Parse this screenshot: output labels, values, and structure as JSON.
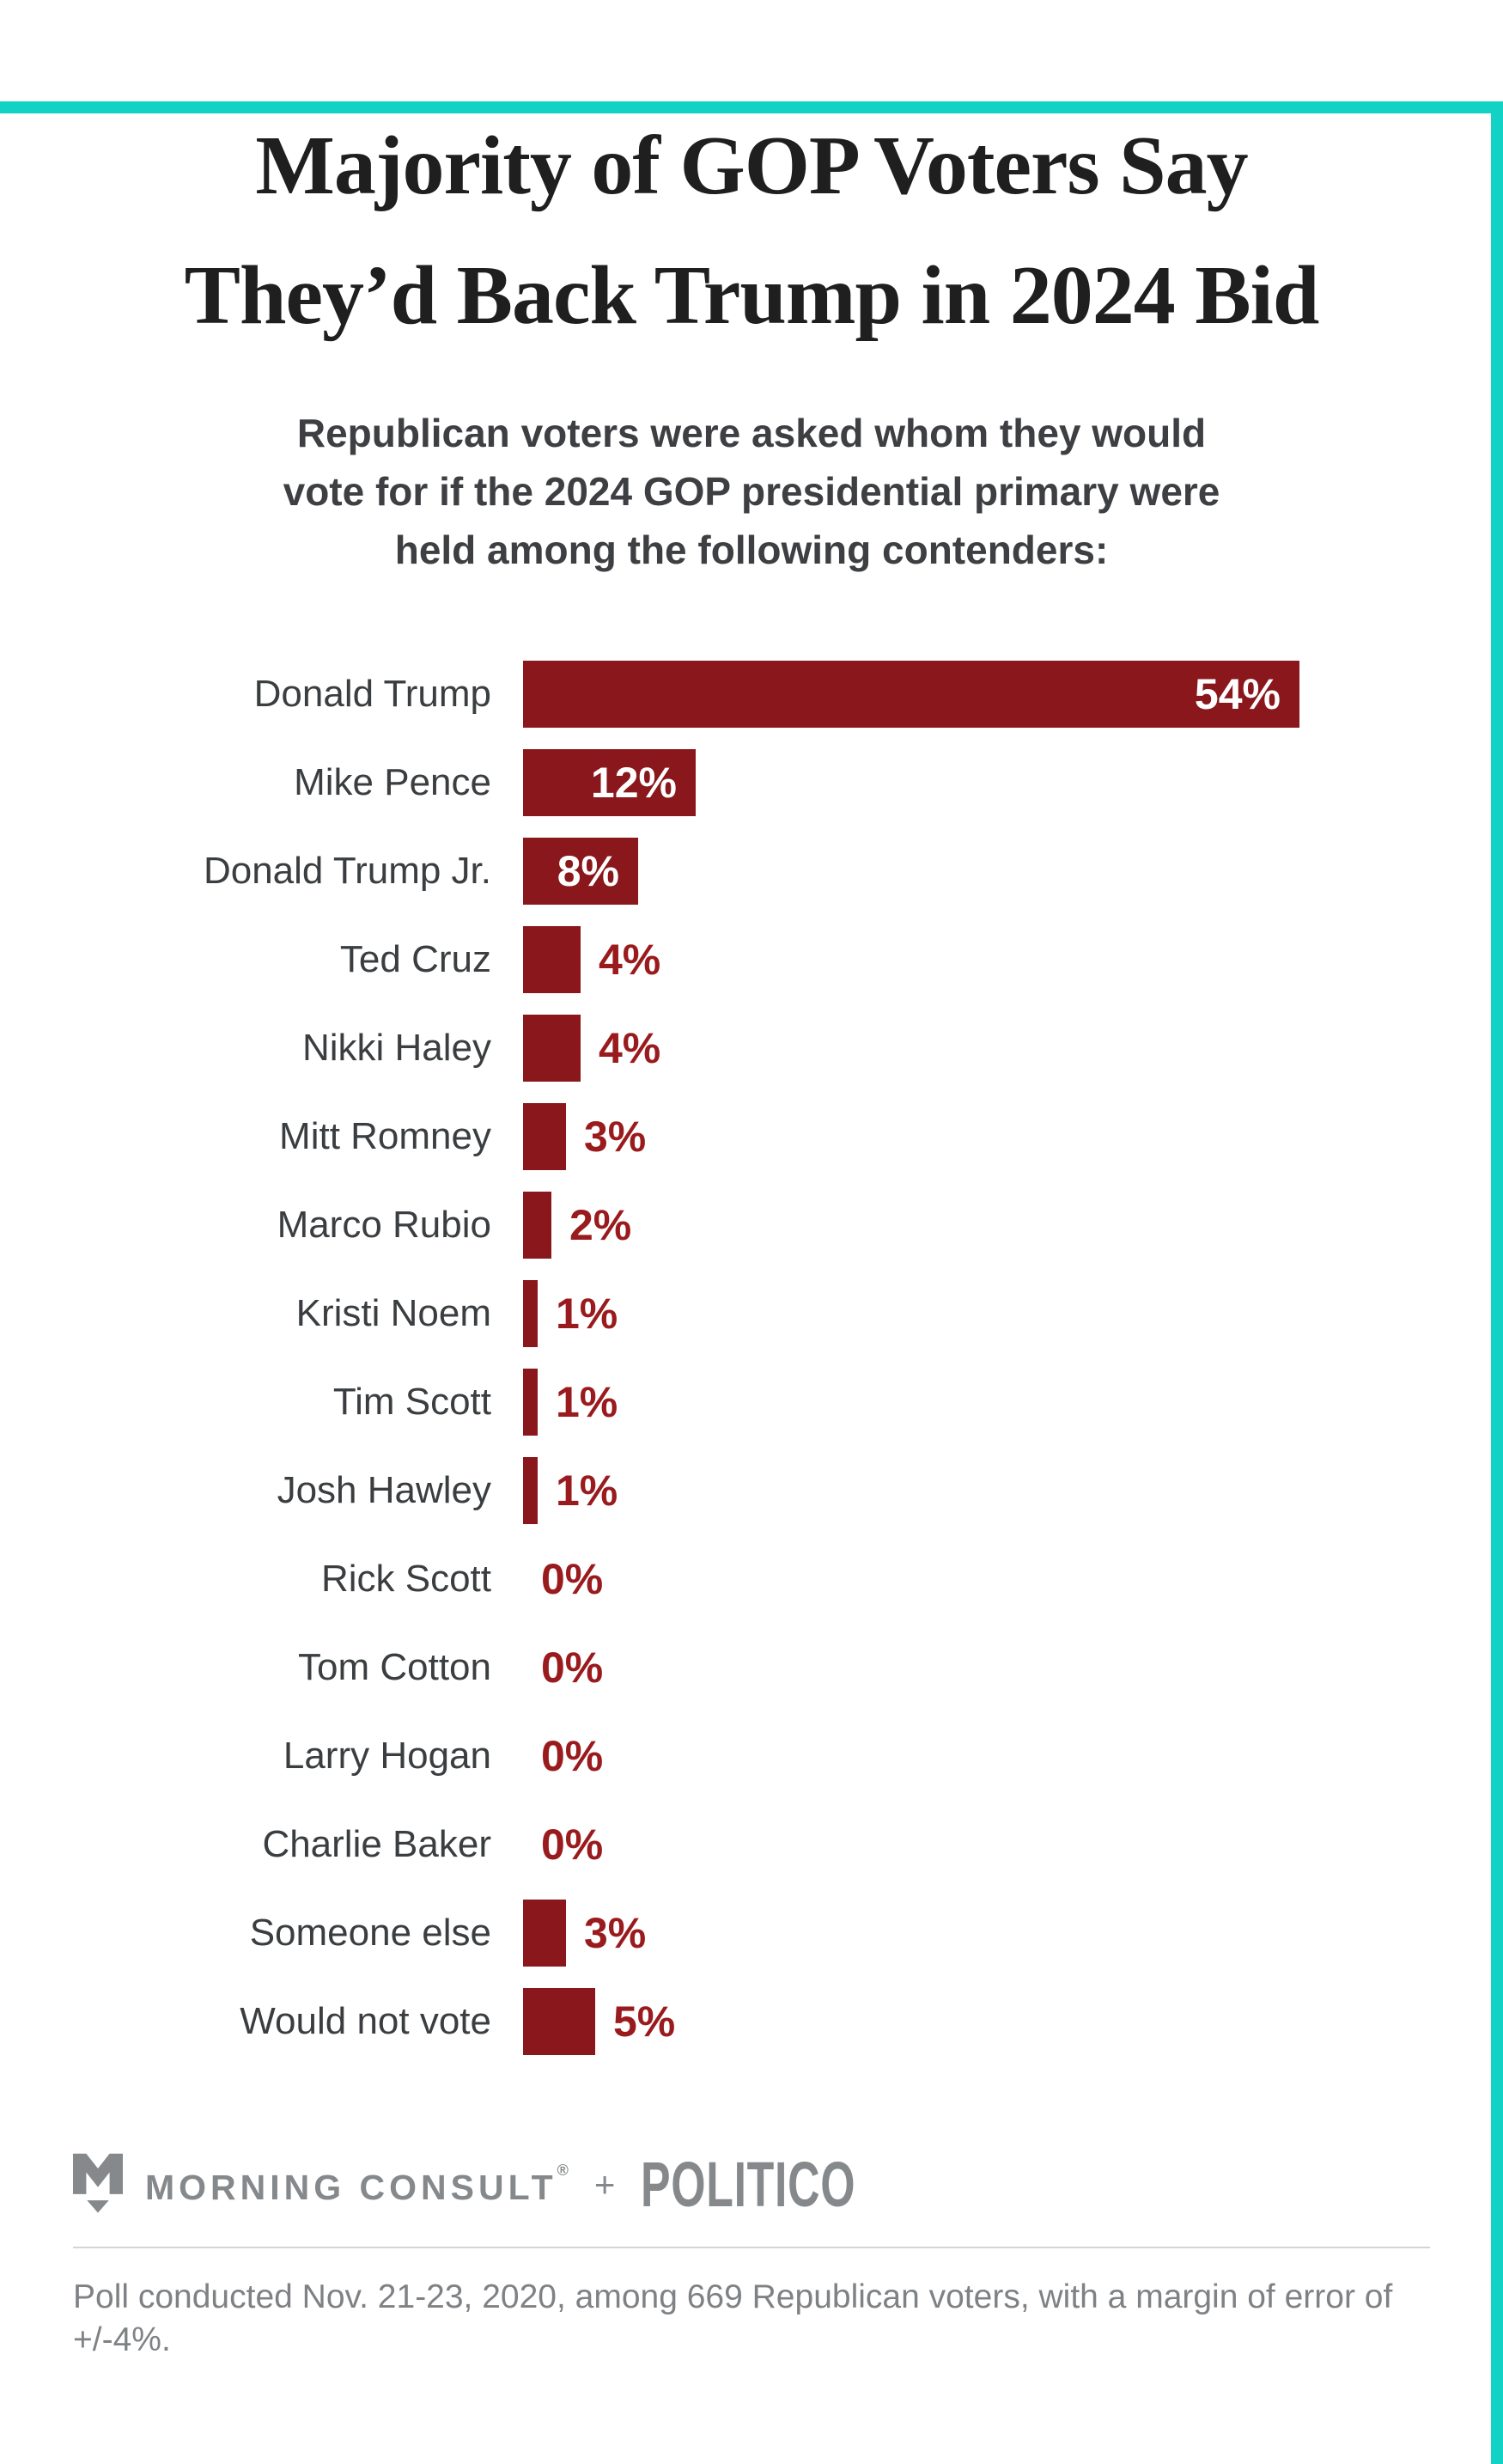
{
  "colors": {
    "accent_teal": "#12d2c6",
    "bar": "#8a171b",
    "value_label": "#9a1b1e",
    "title_text": "#1f1f1f",
    "label_text": "#3b3e40",
    "footer_gray": "#85898c"
  },
  "title": {
    "line1": "Majority of GOP Voters Say",
    "line2": "They’d Back Trump in 2024 Bid"
  },
  "subtitle": {
    "line1": "Republican voters were asked whom they would",
    "line2": "vote for if the 2024 GOP presidential primary were",
    "line3": "held among the following contenders:"
  },
  "chart_data": {
    "type": "bar",
    "orientation": "horizontal",
    "unit": "percent",
    "grid": false,
    "legend": false,
    "xlim": [
      0,
      54
    ],
    "inside_label_threshold": 8,
    "categories": [
      "Donald Trump",
      "Mike Pence",
      "Donald Trump Jr.",
      "Ted Cruz",
      "Nikki Haley",
      "Mitt Romney",
      "Marco Rubio",
      "Kristi Noem",
      "Tim Scott",
      "Josh Hawley",
      "Rick Scott",
      "Tom Cotton",
      "Larry Hogan",
      "Charlie Baker",
      "Someone else",
      "Would not vote"
    ],
    "values": [
      54,
      12,
      8,
      4,
      4,
      3,
      2,
      1,
      1,
      1,
      0,
      0,
      0,
      0,
      3,
      5
    ],
    "value_labels": [
      "54%",
      "12%",
      "8%",
      "4%",
      "4%",
      "3%",
      "2%",
      "1%",
      "1%",
      "1%",
      "0%",
      "0%",
      "0%",
      "0%",
      "3%",
      "5%"
    ],
    "title": "Majority of GOP Voters Say They’d Back Trump in 2024 Bid"
  },
  "branding": {
    "morning_consult": "MORNING CONSULT",
    "registered": "®",
    "plus": "+",
    "politico": "POLITICO"
  },
  "footnote": "Poll conducted Nov. 21-23, 2020, among 669 Republican voters, with a margin of error of +/-4%."
}
